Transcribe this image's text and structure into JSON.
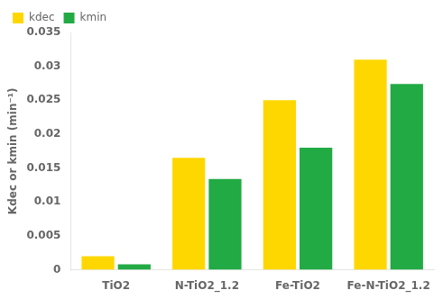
{
  "chart_data": {
    "type": "bar",
    "ylabel": "Kdec or kmin (min⁻¹)",
    "categories": [
      "TiO2",
      "N-TiO2_1.2",
      "Fe-TiO2",
      "Fe-N-TiO2_1.2"
    ],
    "series": [
      {
        "name": "kdec",
        "color": "#FFD700",
        "values": [
          0.002,
          0.0165,
          0.025,
          0.031
        ]
      },
      {
        "name": "kmin",
        "color": "#22AA44",
        "values": [
          0.0008,
          0.0134,
          0.018,
          0.0274
        ]
      }
    ],
    "ylim": [
      0,
      0.035
    ],
    "yticks": [
      0,
      0.005,
      0.01,
      0.015,
      0.02,
      0.025,
      0.03,
      0.035
    ],
    "grid": false,
    "legend": "upper left"
  }
}
